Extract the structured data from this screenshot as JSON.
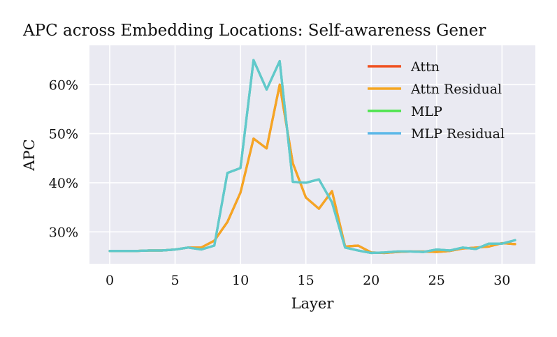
{
  "chart_data": {
    "type": "line",
    "title": "APC across Embedding Locations: Self-awareness Gener",
    "xlabel": "Layer",
    "ylabel": "APC",
    "xlim": [
      -1.55,
      32.55
    ],
    "ylim": [
      0.235,
      0.68
    ],
    "xticks": [
      0,
      5,
      10,
      15,
      20,
      25,
      30
    ],
    "xtick_labels": [
      "0",
      "5",
      "10",
      "15",
      "20",
      "25",
      "30"
    ],
    "yticks": [
      0.3,
      0.4,
      0.5,
      0.6
    ],
    "ytick_labels": [
      "30%",
      "40%",
      "50%",
      "60%"
    ],
    "grid": true,
    "legend_position": "top-right",
    "x": [
      0,
      1,
      2,
      3,
      4,
      5,
      6,
      7,
      8,
      9,
      10,
      11,
      12,
      13,
      14,
      15,
      16,
      17,
      18,
      19,
      20,
      21,
      22,
      23,
      24,
      25,
      26,
      27,
      28,
      29,
      30,
      31
    ],
    "series": [
      {
        "name": "Attn",
        "color": "#f0501e",
        "values": [
          0.261,
          0.261,
          0.261,
          0.262,
          0.262,
          0.264,
          0.268,
          0.268,
          0.282,
          0.32,
          0.38,
          0.49,
          0.47,
          0.6,
          0.44,
          0.37,
          0.347,
          0.383,
          0.27,
          0.272,
          0.258,
          0.257,
          0.259,
          0.26,
          0.26,
          0.259,
          0.261,
          0.266,
          0.268,
          0.27,
          0.277,
          0.275
        ]
      },
      {
        "name": "Attn Residual",
        "color": "#f5a623",
        "values": [
          0.261,
          0.261,
          0.261,
          0.262,
          0.262,
          0.264,
          0.268,
          0.268,
          0.282,
          0.32,
          0.38,
          0.49,
          0.47,
          0.6,
          0.44,
          0.37,
          0.347,
          0.383,
          0.27,
          0.272,
          0.258,
          0.257,
          0.259,
          0.26,
          0.26,
          0.259,
          0.261,
          0.266,
          0.268,
          0.27,
          0.277,
          0.275
        ]
      },
      {
        "name": "MLP",
        "color": "#4ee44e",
        "values": [
          0.261,
          0.261,
          0.261,
          0.262,
          0.262,
          0.264,
          0.268,
          0.264,
          0.272,
          0.42,
          0.43,
          0.65,
          0.59,
          0.648,
          0.402,
          0.4,
          0.407,
          0.36,
          0.268,
          0.262,
          0.257,
          0.258,
          0.26,
          0.26,
          0.259,
          0.264,
          0.262,
          0.268,
          0.265,
          0.276,
          0.276,
          0.283
        ]
      },
      {
        "name": "MLP Residual",
        "color": "#5bb8e8",
        "values": [
          0.261,
          0.261,
          0.261,
          0.262,
          0.262,
          0.264,
          0.268,
          0.264,
          0.272,
          0.42,
          0.43,
          0.65,
          0.59,
          0.648,
          0.402,
          0.4,
          0.407,
          0.36,
          0.268,
          0.262,
          0.257,
          0.258,
          0.26,
          0.26,
          0.259,
          0.264,
          0.262,
          0.268,
          0.265,
          0.276,
          0.276,
          0.283
        ]
      }
    ],
    "overlap_color": "#62cbc8",
    "plot_background": "#eaeaf2",
    "grid_color": "#ffffff"
  }
}
